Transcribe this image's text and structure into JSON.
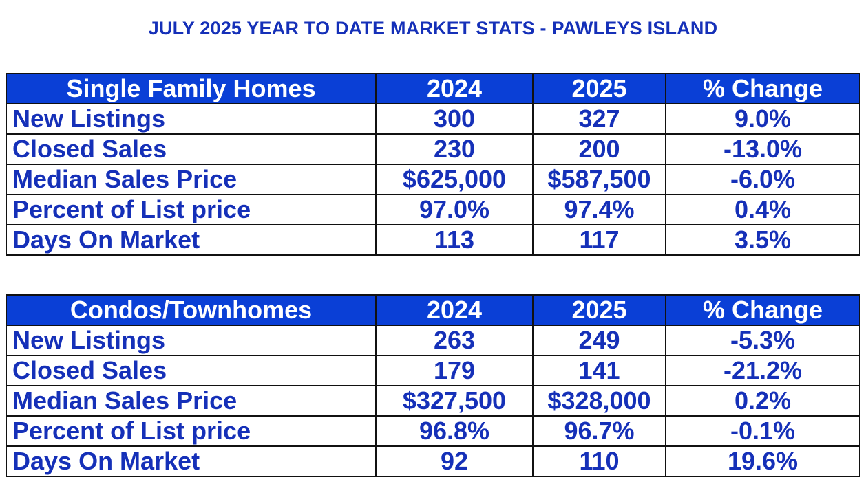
{
  "title": "JULY 2025 YEAR TO DATE MARKET STATS - PAWLEYS ISLAND",
  "colors": {
    "header_bg": "#0a3fd6",
    "header_text": "#ffffff",
    "body_text": "#1530b8",
    "border": "#111111"
  },
  "chart_data": [
    {
      "type": "table",
      "columns": [
        "Single Family Homes",
        "2024",
        "2025",
        "% Change"
      ],
      "rows": [
        [
          "New Listings",
          "300",
          "327",
          "9.0%"
        ],
        [
          "Closed Sales",
          "230",
          "200",
          "-13.0%"
        ],
        [
          "Median Sales Price",
          "$625,000",
          "$587,500",
          "-6.0%"
        ],
        [
          "Percent of List price",
          "97.0%",
          "97.4%",
          "0.4%"
        ],
        [
          "Days On Market",
          "113",
          "117",
          "3.5%"
        ]
      ]
    },
    {
      "type": "table",
      "columns": [
        "Condos/Townhomes",
        "2024",
        "2025",
        "% Change"
      ],
      "rows": [
        [
          "New Listings",
          "263",
          "249",
          "-5.3%"
        ],
        [
          "Closed Sales",
          "179",
          "141",
          "-21.2%"
        ],
        [
          "Median Sales Price",
          "$327,500",
          "$328,000",
          "0.2%"
        ],
        [
          "Percent of List price",
          "96.8%",
          "96.7%",
          "-0.1%"
        ],
        [
          "Days On Market",
          "92",
          "110",
          "19.6%"
        ]
      ]
    }
  ]
}
